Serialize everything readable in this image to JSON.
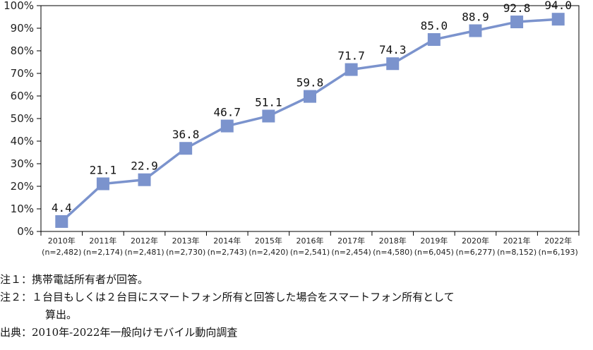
{
  "chart_data": {
    "type": "line",
    "categories": [
      "2010年",
      "2011年",
      "2012年",
      "2013年",
      "2014年",
      "2015年",
      "2016年",
      "2017年",
      "2018年",
      "2019年",
      "2020年",
      "2021年",
      "2022年"
    ],
    "sample_sizes": [
      "(n=2,482)",
      "(n=2,174)",
      "(n=2,481)",
      "(n=2,730)",
      "(n=2,743)",
      "(n=2,420)",
      "(n=2,541)",
      "(n=2,454)",
      "(n=4,580)",
      "(n=6,045)",
      "(n=6,277)",
      "(n=8,152)",
      "(n=6,193)"
    ],
    "series": [
      {
        "values": [
          4.4,
          21.1,
          22.9,
          36.8,
          46.7,
          51.1,
          59.8,
          71.7,
          74.3,
          85.0,
          88.9,
          92.8,
          94.0
        ]
      }
    ],
    "data_labels": [
      "4.4",
      "21.1",
      "22.9",
      "36.8",
      "46.7",
      "51.1",
      "59.8",
      "71.7",
      "74.3",
      "85.0",
      "88.9",
      "92.8",
      "94.0"
    ],
    "y_ticks": [
      "0%",
      "10%",
      "20%",
      "30%",
      "40%",
      "50%",
      "60%",
      "70%",
      "80%",
      "90%",
      "100%"
    ],
    "ylim": [
      0,
      100
    ],
    "grid": false,
    "legend": "none",
    "line_color": "#7b93cd",
    "marker_color": "#7b93cd",
    "marker": "square"
  },
  "notes": {
    "note1": "注１：携帯電話所有者が回答。",
    "note2_line1": "注２：１台目もしくは２台目にスマートフォン所有と回答した場合をスマートフォン所有として",
    "note2_line2": "算出。",
    "source": "出典：2010年-2022年一般向けモバイル動向調査"
  }
}
